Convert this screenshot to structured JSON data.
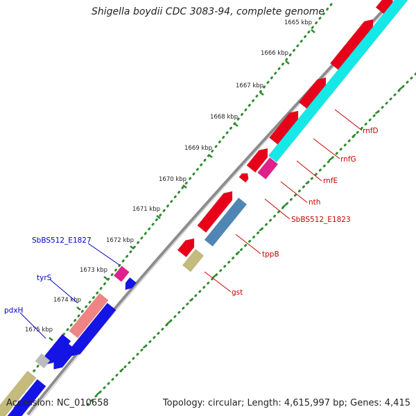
{
  "title": "Shigella boydii CDC 3083-94, complete genome",
  "footer": {
    "accession": "Accession: NC_010658",
    "summary": "Topology: circular; Length: 4,615,997 bp; Genes: 4,415"
  },
  "colors": {
    "backbone": "#8c8c8c",
    "tick_dots": "#2e8b2e",
    "cds_red": "#e8001a",
    "cds_cyan": "#16e8e8",
    "cds_blue": "#1414e6",
    "cds_pink": "#e0208c",
    "cds_salmon": "#f08484",
    "cds_steel": "#4f86b5",
    "cds_khaki": "#c4bb7c",
    "cds_grey": "#bcbcbc",
    "label_red": "#c80000",
    "label_blue": "#0000c8"
  },
  "ticks": [
    {
      "label": "1665 kbp"
    },
    {
      "label": "1666 kbp"
    },
    {
      "label": "1667 kbp"
    },
    {
      "label": "1668 kbp"
    },
    {
      "label": "1669 kbp"
    },
    {
      "label": "1670 kbp"
    },
    {
      "label": "1671 kbp"
    },
    {
      "label": "1672 kbp"
    },
    {
      "label": "1673 kbp"
    },
    {
      "label": "1674 kbp"
    },
    {
      "label": "1675 kbp"
    }
  ],
  "gene_labels": [
    {
      "text": "rnfD",
      "color": "label_red"
    },
    {
      "text": "rnfG",
      "color": "label_red"
    },
    {
      "text": "rnfE",
      "color": "label_red"
    },
    {
      "text": "nth",
      "color": "label_red"
    },
    {
      "text": "SbBS512_E1823",
      "color": "label_red"
    },
    {
      "text": "tppB",
      "color": "label_red"
    },
    {
      "text": "gst",
      "color": "label_red"
    },
    {
      "text": "SbBS512_E1827",
      "color": "label_blue"
    },
    {
      "text": "tyrS",
      "color": "label_blue"
    },
    {
      "text": "pdxH",
      "color": "label_blue"
    }
  ]
}
